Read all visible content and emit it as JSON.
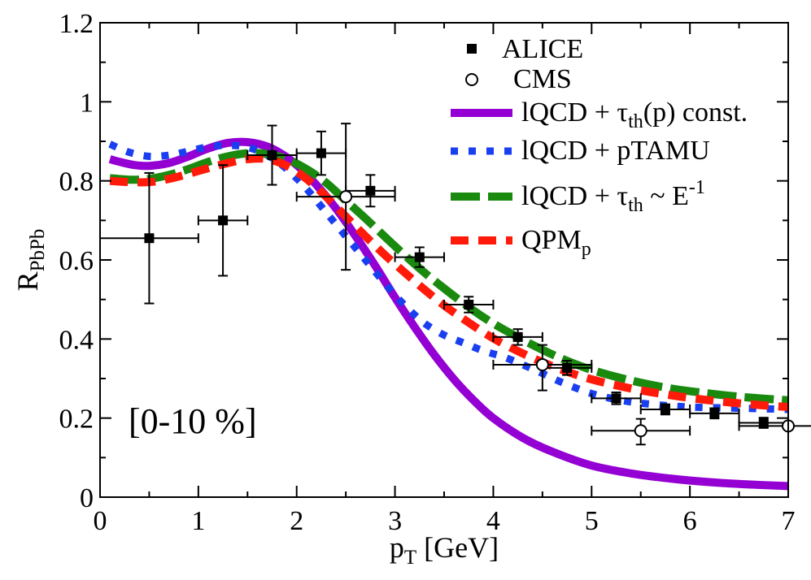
{
  "chart_data": {
    "type": "line",
    "xlabel": "p",
    "xlabel_sub": "T",
    "xlabel_rest": " [GeV]",
    "ylabel": "R",
    "ylabel_sub": "PbPb",
    "xlim": [
      0,
      7
    ],
    "ylim": [
      0,
      1.2
    ],
    "x_ticks": [
      0,
      1,
      2,
      3,
      4,
      5,
      6,
      7
    ],
    "x_tick_labels": [
      "0",
      "1",
      "2",
      "3",
      "4",
      "5",
      "6",
      "7"
    ],
    "y_ticks": [
      0,
      0.2,
      0.4,
      0.6,
      0.8,
      1.0,
      1.2
    ],
    "y_tick_labels": [
      "0",
      "0.2",
      "0.4",
      "0.6",
      "0.8",
      "1",
      "1.2"
    ],
    "annotation": "[0-10 %]",
    "legend": [
      {
        "key": "alice",
        "label": "ALICE",
        "style": "square"
      },
      {
        "key": "cms",
        "label": "CMS",
        "style": "circle"
      },
      {
        "key": "const",
        "label_main": "lQCD + τ",
        "label_sub": "th",
        "label_tail": "(p) const.",
        "style": "solid",
        "color": "#9400d3"
      },
      {
        "key": "ptamu",
        "label_main": "lQCD + pTAMU",
        "label_sub": "",
        "label_tail": "",
        "style": "dotted",
        "color": "#1a3ff0"
      },
      {
        "key": "einv",
        "label_main": "lQCD + τ",
        "label_sub": "th",
        "label_tail": " ~ E",
        "label_sup": "-1",
        "style": "longdash",
        "color": "#1a8a0f"
      },
      {
        "key": "qpm",
        "label_main": "QPM",
        "label_sub": "p",
        "label_tail": "",
        "style": "dashed",
        "color": "#ff1a0a"
      }
    ],
    "alice": [
      {
        "x": 0.5,
        "y": 0.655,
        "xerr": 0.5,
        "yerr": 0.165
      },
      {
        "x": 1.25,
        "y": 0.7,
        "xerr": 0.25,
        "yerr": 0.14
      },
      {
        "x": 1.75,
        "y": 0.865,
        "xerr": 0.25,
        "yerr": 0.075
      },
      {
        "x": 2.25,
        "y": 0.87,
        "xerr": 0.25,
        "yerr": 0.055
      },
      {
        "x": 2.75,
        "y": 0.775,
        "xerr": 0.25,
        "yerr": 0.04
      },
      {
        "x": 3.25,
        "y": 0.607,
        "xerr": 0.25,
        "yerr": 0.025
      },
      {
        "x": 3.75,
        "y": 0.487,
        "xerr": 0.25,
        "yerr": 0.02
      },
      {
        "x": 4.25,
        "y": 0.405,
        "xerr": 0.25,
        "yerr": 0.02
      },
      {
        "x": 4.75,
        "y": 0.327,
        "xerr": 0.25,
        "yerr": 0.018
      },
      {
        "x": 5.25,
        "y": 0.25,
        "xerr": 0.25,
        "yerr": 0.015
      },
      {
        "x": 5.75,
        "y": 0.222,
        "xerr": 0.25,
        "yerr": 0.013
      },
      {
        "x": 6.25,
        "y": 0.212,
        "xerr": 0.25,
        "yerr": 0.013
      },
      {
        "x": 6.75,
        "y": 0.188,
        "xerr": 0.25,
        "yerr": 0.013
      }
    ],
    "cms": [
      {
        "x": 2.5,
        "y": 0.76,
        "xerr": 0.5,
        "yerr_up": 0.185,
        "yerr_down": 0.185
      },
      {
        "x": 4.5,
        "y": 0.335,
        "xerr": 0.5,
        "yerr_up": 0.05,
        "yerr_down": 0.065
      },
      {
        "x": 5.5,
        "y": 0.168,
        "xerr": 0.5,
        "yerr_up": 0.03,
        "yerr_down": 0.035
      },
      {
        "x": 7.0,
        "y": 0.18,
        "xerr": 0.5,
        "yerr_up": 0.0,
        "yerr_down": 0.0
      }
    ],
    "series": [
      {
        "name": "const",
        "color": "#9400d3",
        "dash": "",
        "width": 10,
        "x": [
          0.1,
          0.2,
          0.35,
          0.5,
          0.7,
          0.9,
          1.1,
          1.3,
          1.5,
          1.7,
          1.85,
          2.0,
          2.2,
          2.4,
          2.6,
          2.8,
          3.0,
          3.2,
          3.4,
          3.6,
          3.8,
          4.0,
          4.3,
          4.6,
          5.0,
          5.4,
          5.8,
          6.2,
          6.6,
          7.0
        ],
        "y": [
          0.855,
          0.848,
          0.84,
          0.838,
          0.845,
          0.862,
          0.882,
          0.896,
          0.898,
          0.887,
          0.868,
          0.84,
          0.79,
          0.73,
          0.66,
          0.585,
          0.505,
          0.43,
          0.36,
          0.298,
          0.245,
          0.2,
          0.15,
          0.115,
          0.08,
          0.06,
          0.047,
          0.038,
          0.032,
          0.028
        ]
      },
      {
        "name": "ptamu",
        "color": "#1a3ff0",
        "dash": "9 13",
        "width": 9,
        "x": [
          0.1,
          0.3,
          0.5,
          0.7,
          0.9,
          1.1,
          1.3,
          1.5,
          1.7,
          1.9,
          2.1,
          2.3,
          2.5,
          2.7,
          2.9,
          3.1,
          3.3,
          3.5,
          3.7,
          3.9,
          4.1,
          4.3,
          4.5,
          4.7,
          5.0,
          5.3,
          5.6,
          6.0,
          6.5,
          7.0
        ],
        "y": [
          0.893,
          0.872,
          0.862,
          0.865,
          0.875,
          0.886,
          0.89,
          0.885,
          0.865,
          0.83,
          0.78,
          0.72,
          0.66,
          0.6,
          0.54,
          0.485,
          0.44,
          0.41,
          0.39,
          0.37,
          0.355,
          0.335,
          0.313,
          0.29,
          0.262,
          0.245,
          0.235,
          0.228,
          0.225,
          0.222
        ]
      },
      {
        "name": "einv",
        "color": "#1a8a0f",
        "dash": "36 10",
        "width": 10,
        "x": [
          0.1,
          0.3,
          0.5,
          0.7,
          0.9,
          1.1,
          1.3,
          1.5,
          1.7,
          1.9,
          2.1,
          2.3,
          2.5,
          2.7,
          2.9,
          3.1,
          3.3,
          3.5,
          3.7,
          3.9,
          4.1,
          4.4,
          4.7,
          5.0,
          5.4,
          5.8,
          6.2,
          6.6,
          7.0
        ],
        "y": [
          0.807,
          0.803,
          0.805,
          0.815,
          0.83,
          0.848,
          0.862,
          0.87,
          0.868,
          0.855,
          0.83,
          0.795,
          0.75,
          0.705,
          0.658,
          0.612,
          0.568,
          0.528,
          0.49,
          0.455,
          0.425,
          0.385,
          0.35,
          0.322,
          0.295,
          0.275,
          0.262,
          0.252,
          0.245
        ]
      },
      {
        "name": "qpm",
        "color": "#ff1a0a",
        "dash": "22 12",
        "width": 10,
        "x": [
          0.1,
          0.3,
          0.5,
          0.7,
          0.9,
          1.1,
          1.3,
          1.5,
          1.7,
          1.9,
          2.1,
          2.3,
          2.5,
          2.7,
          2.9,
          3.1,
          3.3,
          3.5,
          3.7,
          3.9,
          4.1,
          4.4,
          4.7,
          5.0,
          5.4,
          5.8,
          6.2,
          6.6,
          7.0
        ],
        "y": [
          0.8,
          0.797,
          0.797,
          0.805,
          0.818,
          0.832,
          0.845,
          0.855,
          0.855,
          0.838,
          0.805,
          0.76,
          0.71,
          0.66,
          0.612,
          0.568,
          0.525,
          0.485,
          0.45,
          0.417,
          0.388,
          0.352,
          0.322,
          0.298,
          0.275,
          0.258,
          0.245,
          0.235,
          0.228
        ]
      }
    ]
  }
}
